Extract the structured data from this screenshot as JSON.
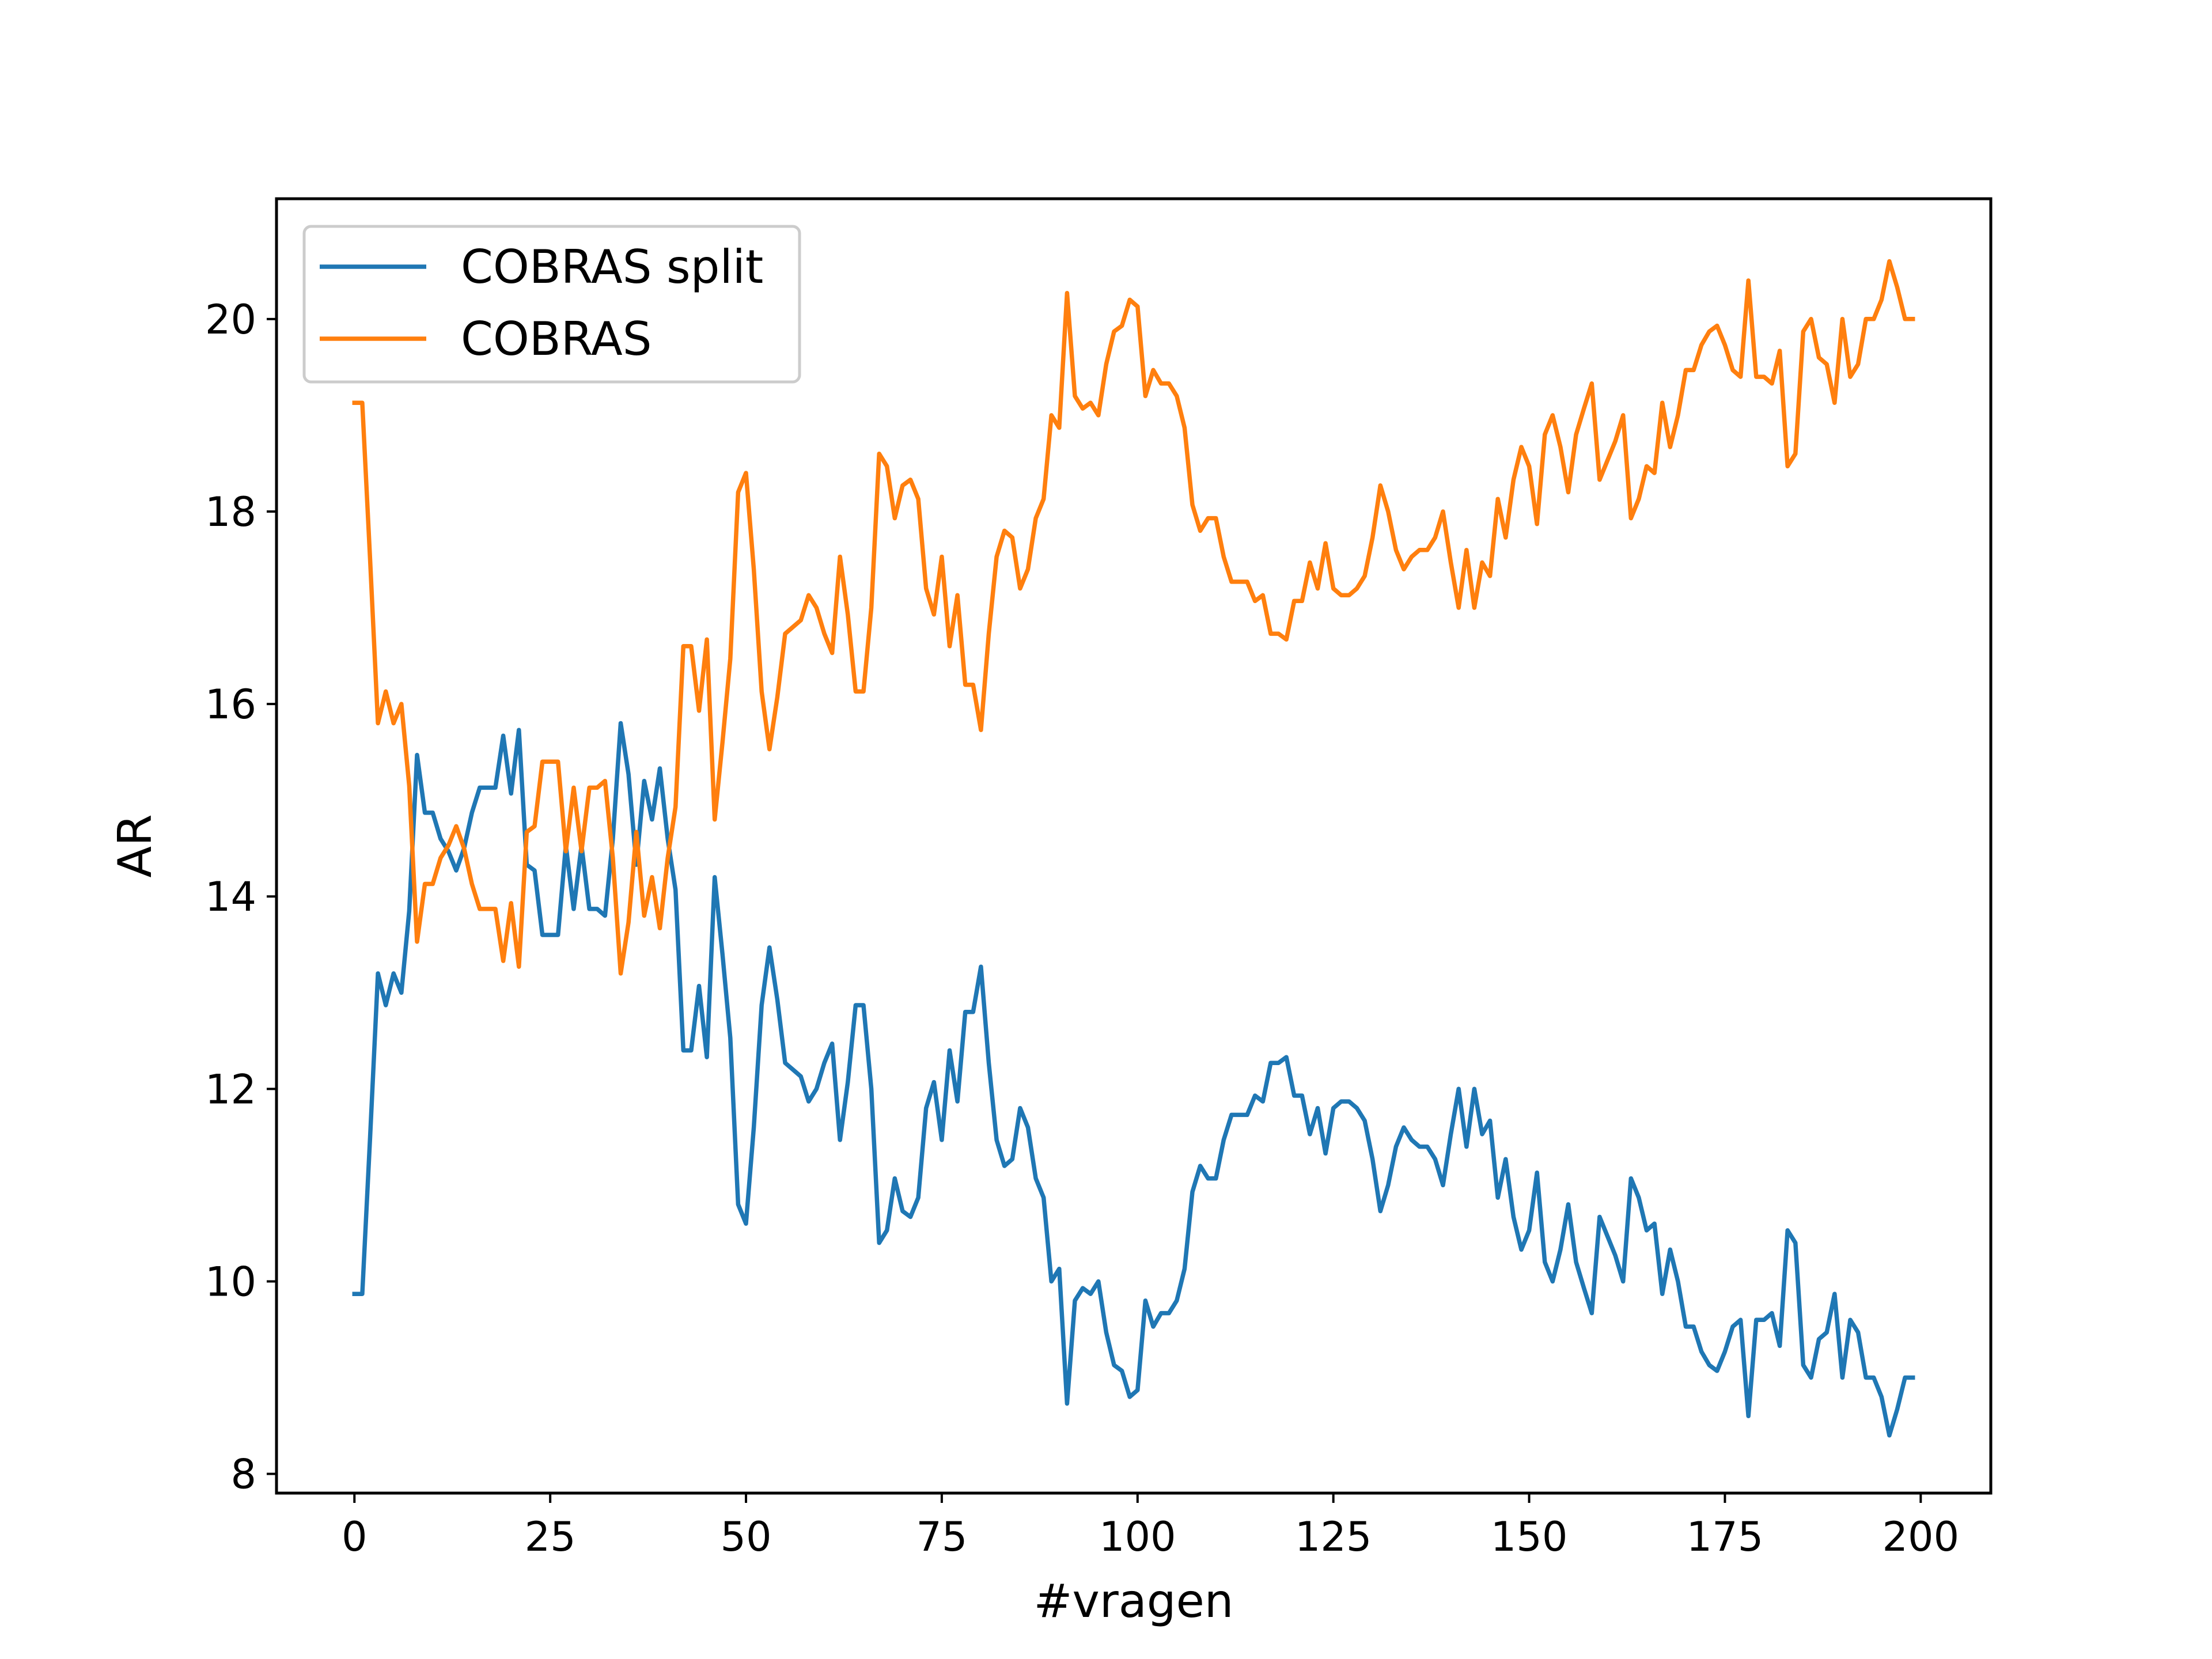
{
  "chart_data": {
    "type": "line",
    "title": "",
    "xlabel": "#vragen",
    "ylabel": "AR",
    "xlim": [
      -9.95,
      208.95
    ],
    "ylim": [
      7.8,
      21.25
    ],
    "xticks": [
      0,
      25,
      50,
      75,
      100,
      125,
      150,
      175,
      200
    ],
    "yticks": [
      8,
      10,
      12,
      14,
      16,
      18,
      20
    ],
    "grid": false,
    "legend": "upper left",
    "series": [
      {
        "name": "COBRAS split",
        "color": "#1f77b4",
        "x": [
          0,
          1,
          2,
          3,
          4,
          5,
          6,
          7,
          8,
          9,
          10,
          11,
          12,
          13,
          14,
          15,
          16,
          17,
          18,
          19,
          20,
          21,
          22,
          23,
          24,
          25,
          26,
          27,
          28,
          29,
          30,
          31,
          32,
          33,
          34,
          35,
          36,
          37,
          38,
          39,
          40,
          41,
          42,
          43,
          44,
          45,
          46,
          47,
          48,
          49,
          50,
          51,
          52,
          53,
          54,
          55,
          56,
          57,
          58,
          59,
          60,
          61,
          62,
          63,
          64,
          65,
          66,
          67,
          68,
          69,
          70,
          71,
          72,
          73,
          74,
          75,
          76,
          77,
          78,
          79,
          80,
          81,
          82,
          83,
          84,
          85,
          86,
          87,
          88,
          89,
          90,
          91,
          92,
          93,
          94,
          95,
          96,
          97,
          98,
          99,
          100,
          101,
          102,
          103,
          104,
          105,
          106,
          107,
          108,
          109,
          110,
          111,
          112,
          113,
          114,
          115,
          116,
          117,
          118,
          119,
          120,
          121,
          122,
          123,
          124,
          125,
          126,
          127,
          128,
          129,
          130,
          131,
          132,
          133,
          134,
          135,
          136,
          137,
          138,
          139,
          140,
          141,
          142,
          143,
          144,
          145,
          146,
          147,
          148,
          149,
          150,
          151,
          152,
          153,
          154,
          155,
          156,
          157,
          158,
          159,
          160,
          161,
          162,
          163,
          164,
          165,
          166,
          167,
          168,
          169,
          170,
          171,
          172,
          173,
          174,
          175,
          176,
          177,
          178,
          179,
          180,
          181,
          182,
          183,
          184,
          185,
          186,
          187,
          188,
          189,
          190,
          191,
          192,
          193,
          194,
          195,
          196,
          197,
          198,
          199
        ],
        "values": [
          9.87,
          9.87,
          11.5,
          13.2,
          12.87,
          13.2,
          13.0,
          13.85,
          15.47,
          14.87,
          14.87,
          14.6,
          14.47,
          14.27,
          14.5,
          14.87,
          15.13,
          15.13,
          15.13,
          15.67,
          15.07,
          15.73,
          14.33,
          14.27,
          13.6,
          13.6,
          13.6,
          14.53,
          13.87,
          14.53,
          13.87,
          13.87,
          13.8,
          14.6,
          15.8,
          15.27,
          14.33,
          15.2,
          14.8,
          15.33,
          14.6,
          14.07,
          12.4,
          12.4,
          13.07,
          12.33,
          14.2,
          13.4,
          12.53,
          10.8,
          10.6,
          11.6,
          12.87,
          13.47,
          12.93,
          12.27,
          12.2,
          12.13,
          11.87,
          12.0,
          12.27,
          12.47,
          11.47,
          12.07,
          12.87,
          12.87,
          12.0,
          10.4,
          10.53,
          11.07,
          10.73,
          10.67,
          10.87,
          11.8,
          12.07,
          11.47,
          12.4,
          11.87,
          12.8,
          12.8,
          13.27,
          12.27,
          11.47,
          11.2,
          11.27,
          11.8,
          11.6,
          11.07,
          10.87,
          10.0,
          10.13,
          8.73,
          9.8,
          9.93,
          9.87,
          10.0,
          9.47,
          9.13,
          9.07,
          8.8,
          8.87,
          9.8,
          9.53,
          9.67,
          9.67,
          9.8,
          10.13,
          10.93,
          11.2,
          11.07,
          11.07,
          11.47,
          11.73,
          11.73,
          11.73,
          11.93,
          11.87,
          12.27,
          12.27,
          12.33,
          11.93,
          11.93,
          11.53,
          11.8,
          11.33,
          11.8,
          11.87,
          11.87,
          11.8,
          11.67,
          11.27,
          10.73,
          11.0,
          11.4,
          11.6,
          11.47,
          11.4,
          11.4,
          11.27,
          11.0,
          11.53,
          12.0,
          11.4,
          12.0,
          11.53,
          11.67,
          10.87,
          11.27,
          10.67,
          10.33,
          10.53,
          11.13,
          10.2,
          10.0,
          10.33,
          10.8,
          10.2,
          9.93,
          9.67,
          10.67,
          10.47,
          10.27,
          10.0,
          11.07,
          10.87,
          10.53,
          10.6,
          9.87,
          10.33,
          10.0,
          9.53,
          9.53,
          9.27,
          9.13,
          9.07,
          9.27,
          9.53,
          9.6,
          8.6,
          9.6,
          9.6,
          9.67,
          9.33,
          10.53,
          10.4,
          9.13,
          9.0,
          9.4,
          9.47,
          9.87,
          9.0,
          9.6,
          9.47,
          9.0,
          9.0,
          8.8,
          8.4,
          8.67,
          9.0,
          9.0
        ]
      },
      {
        "name": "COBRAS",
        "color": "#ff7f0e",
        "x": [
          0,
          1,
          2,
          3,
          4,
          5,
          6,
          7,
          8,
          9,
          10,
          11,
          12,
          13,
          14,
          15,
          16,
          17,
          18,
          19,
          20,
          21,
          22,
          23,
          24,
          25,
          26,
          27,
          28,
          29,
          30,
          31,
          32,
          33,
          34,
          35,
          36,
          37,
          38,
          39,
          40,
          41,
          42,
          43,
          44,
          45,
          46,
          47,
          48,
          49,
          50,
          51,
          52,
          53,
          54,
          55,
          56,
          57,
          58,
          59,
          60,
          61,
          62,
          63,
          64,
          65,
          66,
          67,
          68,
          69,
          70,
          71,
          72,
          73,
          74,
          75,
          76,
          77,
          78,
          79,
          80,
          81,
          82,
          83,
          84,
          85,
          86,
          87,
          88,
          89,
          90,
          91,
          92,
          93,
          94,
          95,
          96,
          97,
          98,
          99,
          100,
          101,
          102,
          103,
          104,
          105,
          106,
          107,
          108,
          109,
          110,
          111,
          112,
          113,
          114,
          115,
          116,
          117,
          118,
          119,
          120,
          121,
          122,
          123,
          124,
          125,
          126,
          127,
          128,
          129,
          130,
          131,
          132,
          133,
          134,
          135,
          136,
          137,
          138,
          139,
          140,
          141,
          142,
          143,
          144,
          145,
          146,
          147,
          148,
          149,
          150,
          151,
          152,
          153,
          154,
          155,
          156,
          157,
          158,
          159,
          160,
          161,
          162,
          163,
          164,
          165,
          166,
          167,
          168,
          169,
          170,
          171,
          172,
          173,
          174,
          175,
          176,
          177,
          178,
          179,
          180,
          181,
          182,
          183,
          184,
          185,
          186,
          187,
          188,
          189,
          190,
          191,
          192,
          193,
          194,
          195,
          196,
          197,
          198,
          199
        ],
        "values": [
          19.13,
          19.13,
          17.5,
          15.8,
          16.13,
          15.8,
          16.0,
          15.15,
          13.53,
          14.13,
          14.13,
          14.4,
          14.53,
          14.73,
          14.5,
          14.13,
          13.87,
          13.87,
          13.87,
          13.33,
          13.93,
          13.27,
          14.67,
          14.73,
          15.4,
          15.4,
          15.4,
          14.47,
          15.13,
          14.47,
          15.13,
          15.13,
          15.2,
          14.4,
          13.2,
          13.73,
          14.67,
          13.8,
          14.2,
          13.67,
          14.4,
          14.93,
          16.6,
          16.6,
          15.93,
          16.67,
          14.8,
          15.6,
          16.47,
          18.2,
          18.4,
          17.4,
          16.13,
          15.53,
          16.07,
          16.73,
          16.8,
          16.87,
          17.13,
          17.0,
          16.73,
          16.53,
          17.53,
          16.93,
          16.13,
          16.13,
          17.0,
          18.6,
          18.47,
          17.93,
          18.27,
          18.33,
          18.13,
          17.2,
          16.93,
          17.53,
          16.6,
          17.13,
          16.2,
          16.2,
          15.73,
          16.73,
          17.53,
          17.8,
          17.73,
          17.2,
          17.4,
          17.93,
          18.13,
          19.0,
          18.87,
          20.27,
          19.2,
          19.07,
          19.13,
          19.0,
          19.53,
          19.87,
          19.93,
          20.2,
          20.13,
          19.2,
          19.47,
          19.33,
          19.33,
          19.2,
          18.87,
          18.07,
          17.8,
          17.93,
          17.93,
          17.53,
          17.27,
          17.27,
          17.27,
          17.07,
          17.13,
          16.73,
          16.73,
          16.67,
          17.07,
          17.07,
          17.47,
          17.2,
          17.67,
          17.2,
          17.13,
          17.13,
          17.2,
          17.33,
          17.73,
          18.27,
          18.0,
          17.6,
          17.4,
          17.53,
          17.6,
          17.6,
          17.73,
          18.0,
          17.47,
          17.0,
          17.6,
          17.0,
          17.47,
          17.33,
          18.13,
          17.73,
          18.33,
          18.67,
          18.47,
          17.87,
          18.8,
          19.0,
          18.67,
          18.2,
          18.8,
          19.07,
          19.33,
          18.33,
          18.53,
          18.73,
          19.0,
          17.93,
          18.13,
          18.47,
          18.4,
          19.13,
          18.67,
          19.0,
          19.47,
          19.47,
          19.73,
          19.87,
          19.93,
          19.73,
          19.47,
          19.4,
          20.4,
          19.4,
          19.4,
          19.33,
          19.67,
          18.47,
          18.6,
          19.87,
          20.0,
          19.6,
          19.53,
          19.13,
          20.0,
          19.4,
          19.53,
          20.0,
          20.0,
          20.2,
          20.6,
          20.33,
          20.0,
          20.0
        ]
      }
    ]
  }
}
